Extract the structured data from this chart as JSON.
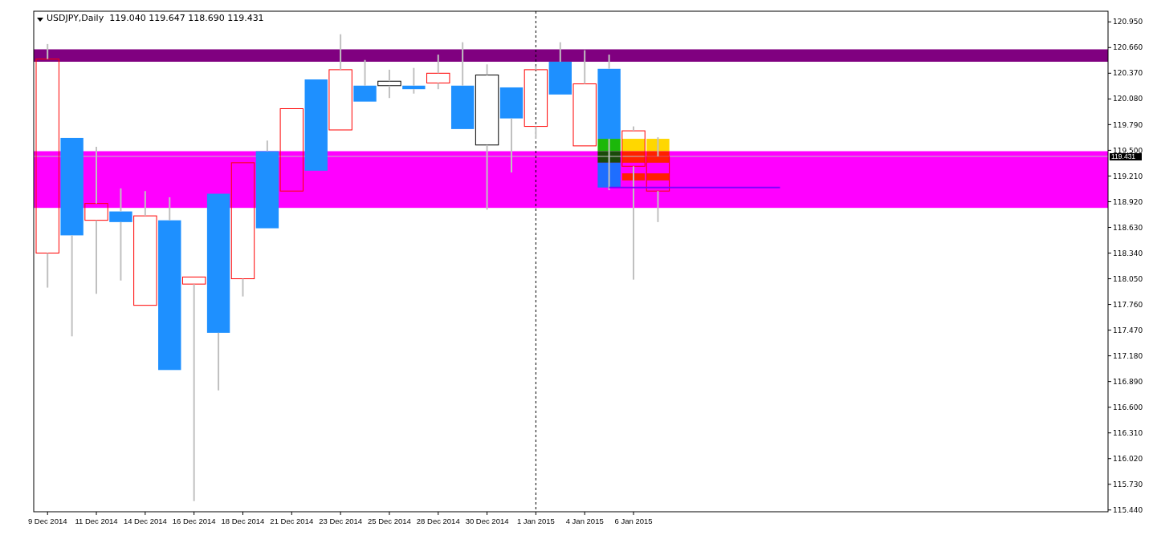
{
  "chart_data": {
    "type": "candlestick",
    "title": "USDJPY,Daily  119.040 119.647 118.690 119.431",
    "categories": [
      "9 Dec 2014",
      null,
      "11 Dec 2014",
      null,
      "14 Dec 2014",
      null,
      "16 Dec 2014",
      null,
      "18 Dec 2014",
      null,
      "21 Dec 2014",
      null,
      "23 Dec 2014",
      null,
      "25 Dec 2014",
      null,
      "28 Dec 2014",
      null,
      "30 Dec 2014",
      null,
      "1 Jan 2015",
      null,
      "4 Jan 2015",
      null,
      "6 Jan 2015",
      null,
      null,
      null,
      null,
      null,
      null,
      null,
      null,
      null,
      null,
      null,
      null,
      null,
      null,
      null,
      null,
      null,
      null,
      null
    ],
    "ohlc": [
      [
        118.34,
        120.7,
        117.95,
        120.53
      ],
      [
        119.64,
        119.64,
        117.4,
        118.54
      ],
      [
        118.71,
        119.54,
        117.88,
        118.9
      ],
      [
        118.81,
        119.07,
        118.03,
        118.69
      ],
      [
        117.75,
        119.04,
        117.75,
        118.76
      ],
      [
        118.71,
        118.97,
        117.02,
        117.02
      ],
      [
        117.99,
        118.07,
        115.54,
        118.07
      ],
      [
        119.01,
        119.01,
        116.79,
        117.44
      ],
      [
        118.05,
        119.36,
        117.85,
        119.36
      ],
      [
        119.49,
        119.61,
        118.62,
        118.62
      ],
      [
        119.04,
        119.97,
        119.04,
        119.97
      ],
      [
        120.3,
        120.3,
        119.27,
        119.27
      ],
      [
        119.73,
        120.81,
        119.73,
        120.41
      ],
      [
        120.23,
        120.52,
        120.05,
        120.05
      ],
      [
        120.23,
        120.41,
        120.09,
        120.28
      ],
      [
        120.23,
        120.43,
        120.14,
        120.19
      ],
      [
        120.26,
        120.58,
        120.19,
        120.37
      ],
      [
        120.23,
        120.72,
        119.74,
        119.74
      ],
      [
        119.56,
        120.47,
        118.83,
        120.35
      ],
      [
        120.21,
        120.21,
        119.25,
        119.86
      ],
      [
        119.77,
        120.45,
        119.63,
        120.41
      ],
      [
        120.5,
        120.72,
        120.13,
        120.13
      ],
      [
        119.55,
        120.63,
        119.55,
        120.25
      ],
      [
        120.42,
        120.58,
        119.05,
        119.63
      ],
      [
        119.32,
        119.77,
        118.04,
        119.72
      ],
      [
        119.04,
        119.647,
        118.69,
        119.431
      ],
      null,
      null,
      null,
      null,
      null,
      null,
      null,
      null,
      null,
      null,
      null,
      null,
      null,
      null,
      null,
      null,
      null,
      null
    ],
    "colors": [
      "#ff0000",
      "#1e90ff",
      "#ff0000",
      "#1e90ff",
      "#ff0000",
      "#1e90ff",
      "#ff0000",
      "#1e90ff",
      "#ff0000",
      "#1e90ff",
      "#ff0000",
      "#1e90ff",
      "#ff0000",
      "#1e90ff",
      "#000000",
      "#1e90ff",
      "#ff0000",
      "#1e90ff",
      "#000000",
      "#1e90ff",
      "#ff0000",
      "#1e90ff",
      "#ff0000",
      "#1e90ff",
      "#ff0000",
      "#ff0000",
      null,
      null,
      null,
      null,
      null,
      null,
      null,
      null,
      null,
      null,
      null,
      null,
      null,
      null,
      null,
      null,
      null,
      null
    ],
    "series": [
      {
        "type": "bar",
        "color": "#1cb80a",
        "values": [
          null,
          null,
          null,
          null,
          null,
          null,
          null,
          null,
          null,
          null,
          null,
          null,
          null,
          null,
          null,
          null,
          null,
          null,
          null,
          null,
          null,
          null,
          null,
          0.14,
          null,
          null,
          null,
          null,
          null,
          null,
          null,
          null,
          null,
          null,
          null,
          null,
          null,
          null,
          null,
          null,
          null,
          null,
          null,
          null
        ],
        "base": [
          null,
          null,
          null,
          null,
          null,
          null,
          null,
          null,
          null,
          null,
          null,
          null,
          null,
          null,
          null,
          null,
          null,
          null,
          null,
          null,
          null,
          null,
          null,
          119.49,
          null,
          null,
          null,
          null,
          null,
          null,
          null,
          null,
          null,
          null,
          null,
          null,
          null,
          null,
          null,
          null,
          null,
          null,
          null,
          null
        ]
      },
      {
        "type": "bar",
        "color": "#1a4a0a",
        "values": [
          null,
          null,
          null,
          null,
          null,
          null,
          null,
          null,
          null,
          null,
          null,
          null,
          null,
          null,
          null,
          null,
          null,
          null,
          null,
          null,
          null,
          null,
          null,
          0.13,
          null,
          null,
          null,
          null,
          null,
          null,
          null,
          null,
          null,
          null,
          null,
          null,
          null,
          null,
          null,
          null,
          null,
          null,
          null,
          null
        ],
        "base": [
          null,
          null,
          null,
          null,
          null,
          null,
          null,
          null,
          null,
          null,
          null,
          null,
          null,
          null,
          null,
          null,
          null,
          null,
          null,
          null,
          null,
          null,
          null,
          119.36,
          null,
          null,
          null,
          null,
          null,
          null,
          null,
          null,
          null,
          null,
          null,
          null,
          null,
          null,
          null,
          null,
          null,
          null,
          null,
          null
        ]
      },
      {
        "type": "bar",
        "color": "#1e6eff",
        "values": [
          null,
          null,
          null,
          null,
          null,
          null,
          null,
          null,
          null,
          null,
          null,
          null,
          null,
          null,
          null,
          null,
          null,
          null,
          null,
          null,
          null,
          null,
          null,
          0.28,
          null,
          null,
          null,
          null,
          null,
          null,
          null,
          null,
          null,
          null,
          null,
          null,
          null,
          null,
          null,
          null,
          null,
          null,
          null,
          null
        ],
        "base": [
          null,
          null,
          null,
          null,
          null,
          null,
          null,
          null,
          null,
          null,
          null,
          null,
          null,
          null,
          null,
          null,
          null,
          null,
          null,
          null,
          null,
          null,
          null,
          119.08,
          null,
          null,
          null,
          null,
          null,
          null,
          null,
          null,
          null,
          null,
          null,
          null,
          null,
          null,
          null,
          null,
          null,
          null,
          null,
          null
        ]
      },
      {
        "type": "bar",
        "color": "#ffd700",
        "values": [
          null,
          null,
          null,
          null,
          null,
          null,
          null,
          null,
          null,
          null,
          null,
          null,
          null,
          null,
          null,
          null,
          null,
          null,
          null,
          null,
          null,
          null,
          null,
          null,
          0.14,
          0.14,
          null,
          null,
          null,
          null,
          null,
          null,
          null,
          null,
          null,
          null,
          null,
          null,
          null,
          null,
          null,
          null,
          null,
          null
        ],
        "base": [
          null,
          null,
          null,
          null,
          null,
          null,
          null,
          null,
          null,
          null,
          null,
          null,
          null,
          null,
          null,
          null,
          null,
          null,
          null,
          null,
          null,
          null,
          null,
          null,
          119.49,
          119.49,
          null,
          null,
          null,
          null,
          null,
          null,
          null,
          null,
          null,
          null,
          null,
          null,
          null,
          null,
          null,
          null,
          null,
          null
        ]
      },
      {
        "type": "bar",
        "color": "#ff2000",
        "values": [
          null,
          null,
          null,
          null,
          null,
          null,
          null,
          null,
          null,
          null,
          null,
          null,
          null,
          null,
          null,
          null,
          null,
          null,
          null,
          null,
          null,
          null,
          null,
          null,
          0.13,
          0.13,
          null,
          null,
          null,
          null,
          null,
          null,
          null,
          null,
          null,
          null,
          null,
          null,
          null,
          null,
          null,
          null,
          null,
          null
        ],
        "base": [
          null,
          null,
          null,
          null,
          null,
          null,
          null,
          null,
          null,
          null,
          null,
          null,
          null,
          null,
          null,
          null,
          null,
          null,
          null,
          null,
          null,
          null,
          null,
          null,
          119.36,
          119.36,
          null,
          null,
          null,
          null,
          null,
          null,
          null,
          null,
          null,
          null,
          null,
          null,
          null,
          null,
          null,
          null,
          null,
          null
        ]
      },
      {
        "type": "bar",
        "color": "#ff2000",
        "values": [
          null,
          null,
          null,
          null,
          null,
          null,
          null,
          null,
          null,
          null,
          null,
          null,
          null,
          null,
          null,
          null,
          null,
          null,
          null,
          null,
          null,
          null,
          null,
          null,
          0.08,
          0.08,
          null,
          null,
          null,
          null,
          null,
          null,
          null,
          null,
          null,
          null,
          null,
          null,
          null,
          null,
          null,
          null,
          null,
          null
        ],
        "base": [
          null,
          null,
          null,
          null,
          null,
          null,
          null,
          null,
          null,
          null,
          null,
          null,
          null,
          null,
          null,
          null,
          null,
          null,
          null,
          null,
          null,
          null,
          null,
          null,
          119.16,
          119.16,
          null,
          null,
          null,
          null,
          null,
          null,
          null,
          null,
          null,
          null,
          null,
          null,
          null,
          null,
          null,
          null,
          null,
          null
        ]
      },
      {
        "type": "line",
        "color": "#7f00ff",
        "values": [
          null,
          null,
          null,
          null,
          null,
          null,
          null,
          null,
          null,
          null,
          null,
          null,
          null,
          null,
          null,
          null,
          null,
          null,
          null,
          null,
          null,
          null,
          null,
          119.08,
          119.08,
          119.08,
          119.08,
          119.08,
          119.08,
          119.08,
          119.08,
          null,
          null,
          null,
          null,
          null,
          null,
          null,
          null,
          null,
          null,
          null,
          null,
          null
        ]
      }
    ],
    "ylim": [
      115.42,
      121.07
    ],
    "yticks": [
      {
        "value": 120.95,
        "label": "120.950"
      },
      {
        "value": 120.66,
        "label": "120.660"
      },
      {
        "value": 120.37,
        "label": "120.370"
      },
      {
        "value": 120.08,
        "label": "120.080"
      },
      {
        "value": 119.79,
        "label": "119.790"
      },
      {
        "value": 119.5,
        "label": "119.500"
      },
      {
        "value": 119.21,
        "label": "119.210"
      },
      {
        "value": 118.92,
        "label": "118.920"
      },
      {
        "value": 118.63,
        "label": "118.630"
      },
      {
        "value": 118.34,
        "label": "118.340"
      },
      {
        "value": 118.05,
        "label": "118.050"
      },
      {
        "value": 117.76,
        "label": "117.760"
      },
      {
        "value": 117.47,
        "label": "117.470"
      },
      {
        "value": 117.18,
        "label": "117.180"
      },
      {
        "value": 116.89,
        "label": "116.890"
      },
      {
        "value": 116.6,
        "label": "116.600"
      },
      {
        "value": 116.31,
        "label": "116.310"
      },
      {
        "value": 116.02,
        "label": "116.020"
      },
      {
        "value": 115.73,
        "label": "115.730"
      },
      {
        "value": 115.44,
        "label": "115.440"
      }
    ],
    "bands": [
      {
        "axis": "y",
        "from": 120.5,
        "to": 120.64,
        "color": "#800080"
      },
      {
        "axis": "y",
        "from": 118.85,
        "to": 119.49,
        "color": "#ff00ff"
      }
    ],
    "ref_lines": [
      {
        "axis": "y",
        "value": 119.431,
        "label": "119.431",
        "color": "#c0c0c0"
      },
      {
        "axis": "x",
        "value": "1 Jan 2015",
        "color": "#000000",
        "line_style": "dashed"
      }
    ]
  }
}
